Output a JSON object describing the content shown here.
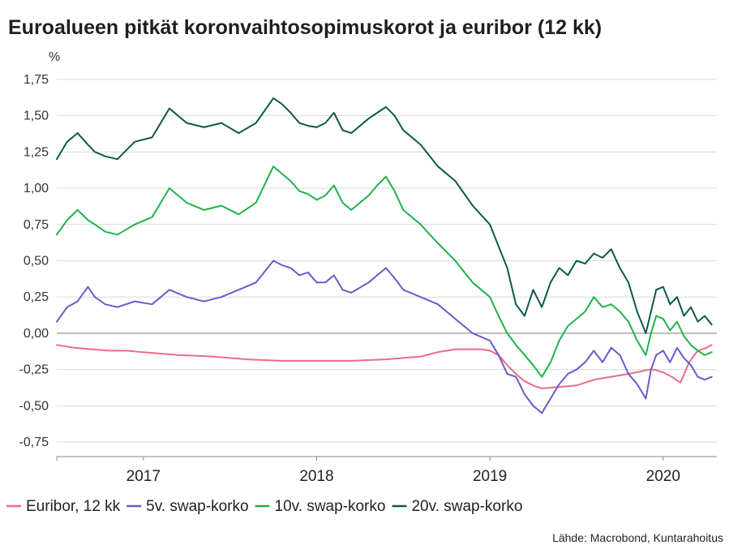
{
  "chart_data": {
    "type": "line",
    "title": "Euroalueen pitkät koronvaihtosopimuskorot ja euribor (12 kk)",
    "ylabel": "%",
    "xlabel": "",
    "ylim": [
      -0.85,
      1.85
    ],
    "yticks": [
      -0.75,
      -0.5,
      -0.25,
      0,
      0.25,
      0.5,
      0.75,
      1,
      1.25,
      1.5,
      1.75
    ],
    "ytick_labels": [
      "-0,75",
      "-0,50",
      "-0,25",
      "0,00",
      "0,25",
      "0,50",
      "0,75",
      "1,00",
      "1,25",
      "1,50",
      "1,75"
    ],
    "xlim": [
      2016.5,
      2020.31
    ],
    "year_boundaries": [
      2016.5,
      2017,
      2018,
      2019,
      2020
    ],
    "year_labels": [
      {
        "label": "2017",
        "pos": 2017.0
      },
      {
        "label": "2018",
        "pos": 2018.0
      },
      {
        "label": "2019",
        "pos": 2019.0
      },
      {
        "label": "2020",
        "pos": 2020.0
      }
    ],
    "grid": true,
    "legend_position": "bottom",
    "source": "Lähde: Macrobond, Kuntarahoitus",
    "series": [
      {
        "name": "Euribor, 12 kk",
        "color": "#ee6b84",
        "x": [
          2016.5,
          2016.6,
          2016.7,
          2016.8,
          2016.9,
          2017.0,
          2017.2,
          2017.4,
          2017.6,
          2017.8,
          2018.0,
          2018.2,
          2018.4,
          2018.6,
          2018.7,
          2018.8,
          2018.9,
          2018.95,
          2019.0,
          2019.05,
          2019.1,
          2019.15,
          2019.2,
          2019.25,
          2019.3,
          2019.4,
          2019.5,
          2019.6,
          2019.7,
          2019.8,
          2019.88,
          2019.92,
          2019.95,
          2020.0,
          2020.05,
          2020.1,
          2020.15,
          2020.2,
          2020.25,
          2020.28
        ],
        "y": [
          -0.08,
          -0.1,
          -0.11,
          -0.12,
          -0.12,
          -0.13,
          -0.15,
          -0.16,
          -0.18,
          -0.19,
          -0.19,
          -0.19,
          -0.18,
          -0.16,
          -0.13,
          -0.11,
          -0.11,
          -0.11,
          -0.12,
          -0.15,
          -0.22,
          -0.28,
          -0.33,
          -0.36,
          -0.38,
          -0.37,
          -0.36,
          -0.32,
          -0.3,
          -0.28,
          -0.26,
          -0.25,
          -0.25,
          -0.27,
          -0.3,
          -0.34,
          -0.2,
          -0.12,
          -0.1,
          -0.08
        ]
      },
      {
        "name": "5v. swap-korko",
        "color": "#6a5acd",
        "x": [
          2016.5,
          2016.56,
          2016.62,
          2016.68,
          2016.72,
          2016.78,
          2016.85,
          2016.95,
          2017.05,
          2017.15,
          2017.25,
          2017.35,
          2017.45,
          2017.55,
          2017.65,
          2017.75,
          2017.8,
          2017.85,
          2017.9,
          2017.95,
          2018.0,
          2018.05,
          2018.1,
          2018.15,
          2018.2,
          2018.3,
          2018.35,
          2018.4,
          2018.45,
          2018.5,
          2018.6,
          2018.7,
          2018.8,
          2018.9,
          2019.0,
          2019.05,
          2019.1,
          2019.15,
          2019.2,
          2019.25,
          2019.3,
          2019.35,
          2019.4,
          2019.45,
          2019.5,
          2019.55,
          2019.6,
          2019.65,
          2019.7,
          2019.75,
          2019.8,
          2019.85,
          2019.9,
          2019.93,
          2019.96,
          2020.0,
          2020.04,
          2020.08,
          2020.12,
          2020.16,
          2020.2,
          2020.24,
          2020.28
        ],
        "y": [
          0.08,
          0.18,
          0.22,
          0.32,
          0.25,
          0.2,
          0.18,
          0.22,
          0.2,
          0.3,
          0.25,
          0.22,
          0.25,
          0.3,
          0.35,
          0.5,
          0.47,
          0.45,
          0.4,
          0.42,
          0.35,
          0.35,
          0.4,
          0.3,
          0.28,
          0.35,
          0.4,
          0.45,
          0.38,
          0.3,
          0.25,
          0.2,
          0.1,
          0.0,
          -0.05,
          -0.15,
          -0.28,
          -0.3,
          -0.42,
          -0.5,
          -0.55,
          -0.45,
          -0.35,
          -0.28,
          -0.25,
          -0.2,
          -0.12,
          -0.2,
          -0.1,
          -0.15,
          -0.28,
          -0.35,
          -0.45,
          -0.25,
          -0.15,
          -0.12,
          -0.2,
          -0.1,
          -0.17,
          -0.22,
          -0.3,
          -0.32,
          -0.3
        ]
      },
      {
        "name": "10v. swap-korko",
        "color": "#1fb34b",
        "x": [
          2016.5,
          2016.56,
          2016.62,
          2016.68,
          2016.72,
          2016.78,
          2016.85,
          2016.95,
          2017.05,
          2017.15,
          2017.25,
          2017.35,
          2017.45,
          2017.55,
          2017.65,
          2017.75,
          2017.8,
          2017.85,
          2017.9,
          2017.95,
          2018.0,
          2018.05,
          2018.1,
          2018.15,
          2018.2,
          2018.3,
          2018.35,
          2018.4,
          2018.45,
          2018.5,
          2018.6,
          2018.7,
          2018.8,
          2018.9,
          2019.0,
          2019.05,
          2019.1,
          2019.15,
          2019.2,
          2019.25,
          2019.3,
          2019.35,
          2019.4,
          2019.45,
          2019.5,
          2019.55,
          2019.6,
          2019.65,
          2019.7,
          2019.75,
          2019.8,
          2019.85,
          2019.9,
          2019.93,
          2019.96,
          2020.0,
          2020.04,
          2020.08,
          2020.12,
          2020.16,
          2020.2,
          2020.24,
          2020.28
        ],
        "y": [
          0.68,
          0.78,
          0.85,
          0.78,
          0.75,
          0.7,
          0.68,
          0.75,
          0.8,
          1.0,
          0.9,
          0.85,
          0.88,
          0.82,
          0.9,
          1.15,
          1.1,
          1.05,
          0.98,
          0.96,
          0.92,
          0.95,
          1.02,
          0.9,
          0.85,
          0.95,
          1.02,
          1.08,
          0.98,
          0.85,
          0.75,
          0.62,
          0.5,
          0.35,
          0.25,
          0.12,
          0.0,
          -0.08,
          -0.15,
          -0.22,
          -0.3,
          -0.2,
          -0.05,
          0.05,
          0.1,
          0.15,
          0.25,
          0.18,
          0.2,
          0.15,
          0.08,
          -0.05,
          -0.15,
          0.0,
          0.12,
          0.1,
          0.02,
          0.08,
          -0.02,
          -0.08,
          -0.12,
          -0.15,
          -0.13
        ]
      },
      {
        "name": "20v. swap-korko",
        "color": "#0b5a4e",
        "x": [
          2016.5,
          2016.56,
          2016.62,
          2016.68,
          2016.72,
          2016.78,
          2016.85,
          2016.95,
          2017.05,
          2017.15,
          2017.25,
          2017.35,
          2017.45,
          2017.55,
          2017.65,
          2017.75,
          2017.8,
          2017.85,
          2017.9,
          2017.95,
          2018.0,
          2018.05,
          2018.1,
          2018.15,
          2018.2,
          2018.3,
          2018.35,
          2018.4,
          2018.45,
          2018.5,
          2018.6,
          2018.7,
          2018.8,
          2018.9,
          2019.0,
          2019.05,
          2019.1,
          2019.15,
          2019.2,
          2019.25,
          2019.3,
          2019.35,
          2019.4,
          2019.45,
          2019.5,
          2019.55,
          2019.6,
          2019.65,
          2019.7,
          2019.75,
          2019.8,
          2019.85,
          2019.9,
          2019.93,
          2019.96,
          2020.0,
          2020.04,
          2020.08,
          2020.12,
          2020.16,
          2020.2,
          2020.24,
          2020.28
        ],
        "y": [
          1.2,
          1.32,
          1.38,
          1.3,
          1.25,
          1.22,
          1.2,
          1.32,
          1.35,
          1.55,
          1.45,
          1.42,
          1.45,
          1.38,
          1.45,
          1.62,
          1.58,
          1.52,
          1.45,
          1.43,
          1.42,
          1.45,
          1.52,
          1.4,
          1.38,
          1.48,
          1.52,
          1.56,
          1.5,
          1.4,
          1.3,
          1.15,
          1.05,
          0.88,
          0.75,
          0.6,
          0.45,
          0.2,
          0.12,
          0.3,
          0.18,
          0.35,
          0.45,
          0.4,
          0.5,
          0.48,
          0.55,
          0.52,
          0.58,
          0.45,
          0.35,
          0.15,
          0.0,
          0.15,
          0.3,
          0.32,
          0.2,
          0.25,
          0.12,
          0.18,
          0.08,
          0.12,
          0.06
        ]
      }
    ]
  }
}
